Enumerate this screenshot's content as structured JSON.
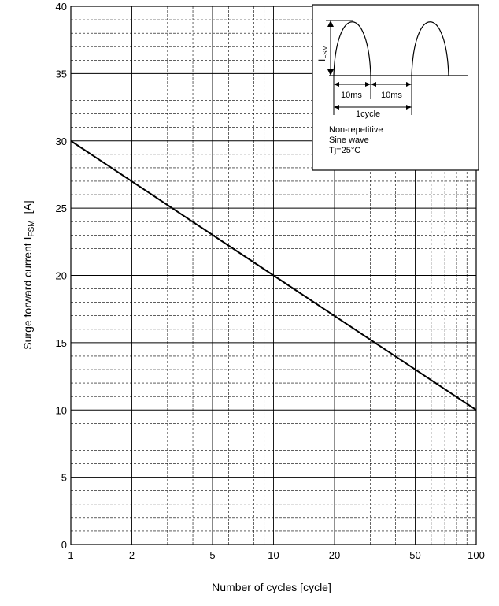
{
  "chart_data": {
    "type": "line",
    "xscale": "log",
    "xlim": [
      1,
      100
    ],
    "ylim": [
      0,
      40
    ],
    "x_ticks": [
      "1",
      "2",
      "5",
      "10",
      "20",
      "50",
      "100"
    ],
    "y_ticks": [
      "0",
      "5",
      "10",
      "15",
      "20",
      "25",
      "30",
      "35",
      "40"
    ],
    "xlabel": "Number of cycles  [cycle]",
    "ylabel_main": "Surge forward current  I",
    "ylabel_sub": "FSM",
    "ylabel_unit": "[A]",
    "grid": true,
    "series": [
      {
        "x": [
          1,
          100
        ],
        "y": [
          30,
          10
        ]
      }
    ],
    "inset": {
      "symbol": "I",
      "symbol_sub": "FSM",
      "label_10ms_a": "10ms",
      "label_10ms_b": "10ms",
      "label_cycle": "1cycle",
      "notes": [
        "Non-repetitive",
        "Sine wave",
        "Tj=25°C"
      ]
    }
  }
}
